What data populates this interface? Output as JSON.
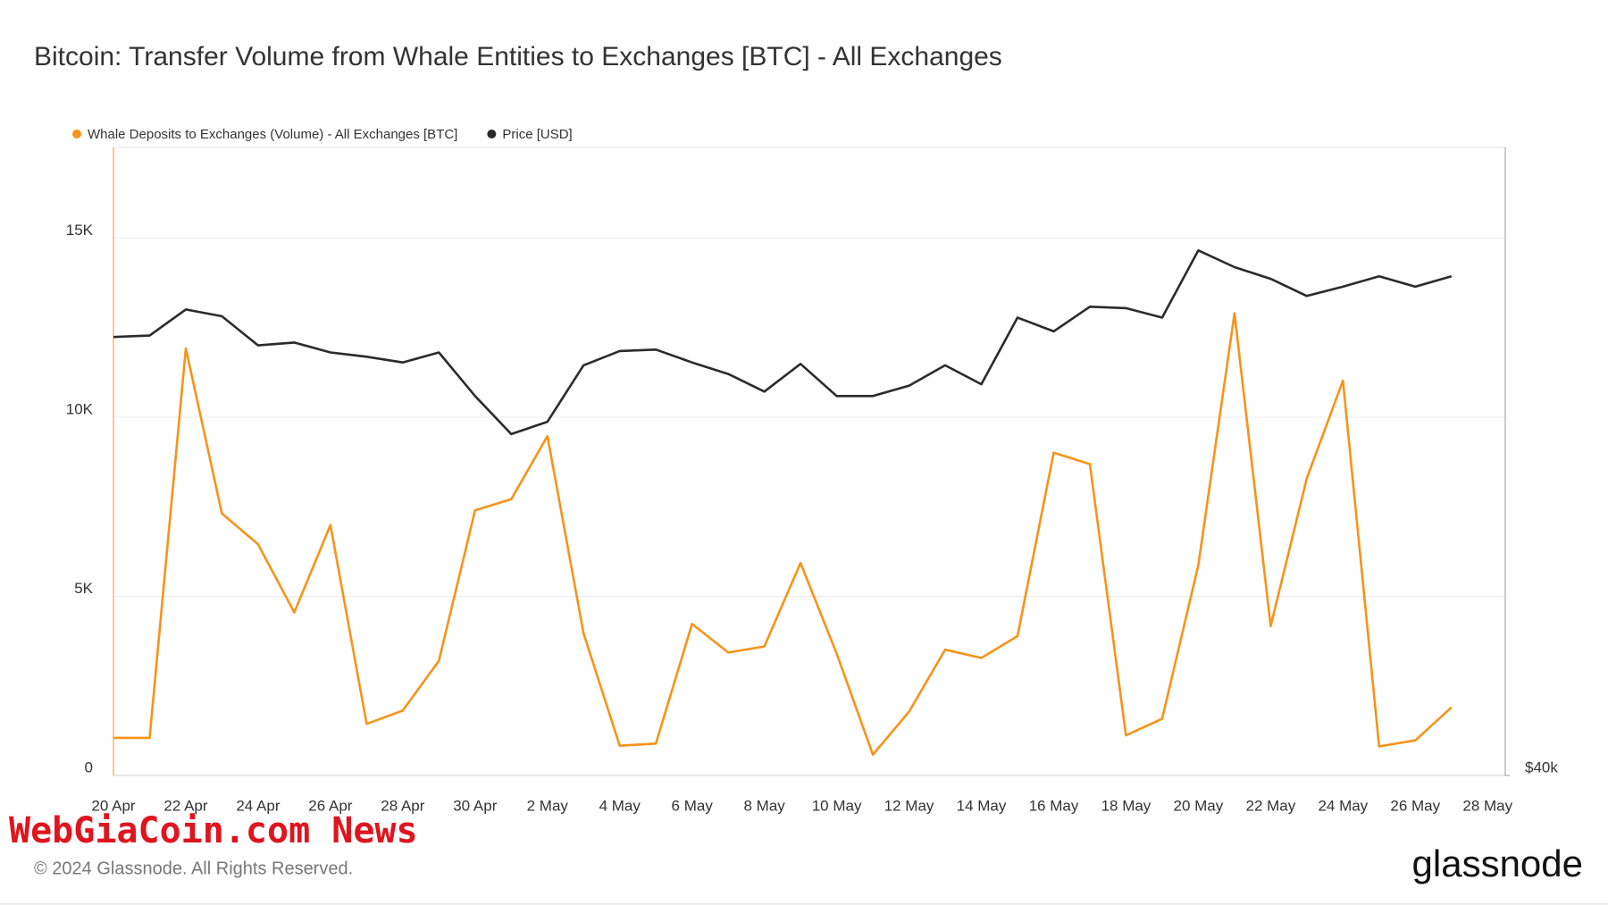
{
  "chart_data": {
    "type": "line",
    "title": "Bitcoin: Transfer Volume from Whale Entities to Exchanges [BTC] - All Exchanges",
    "categories": [
      "20 Apr",
      null,
      "22 Apr",
      null,
      "24 Apr",
      null,
      "26 Apr",
      null,
      "28 Apr",
      null,
      "30 Apr",
      null,
      "2 May",
      null,
      "4 May",
      null,
      "6 May",
      null,
      "8 May",
      null,
      "10 May",
      null,
      "12 May",
      null,
      "14 May",
      null,
      "16 May",
      null,
      "18 May",
      null,
      "20 May",
      null,
      "22 May",
      null,
      "24 May",
      null,
      "26 May",
      null,
      "28 May"
    ],
    "series": [
      {
        "name": "Whale Deposits to Exchanges (Volume) - All Exchanges [BTC]",
        "color": "#f7931a",
        "axis": "y",
        "values": [
          1050,
          1050,
          11920,
          7310,
          6450,
          4550,
          6990,
          1440,
          1810,
          3200,
          7400,
          7710,
          9470,
          3970,
          830,
          890,
          4230,
          3430,
          3600,
          5930,
          3400,
          580,
          1780,
          3510,
          3280,
          3890,
          9010,
          8690,
          1120,
          1580,
          5870,
          12900,
          4170,
          8290,
          11020,
          810,
          980,
          1900,
          null
        ]
      },
      {
        "name": "Price [USD]",
        "color": "#2b2b2b",
        "axis": "y2",
        "values": [
          64900,
          65000,
          66900,
          66400,
          64300,
          64500,
          63800,
          63500,
          63100,
          63800,
          60800,
          58300,
          59100,
          62900,
          63900,
          64000,
          63100,
          62300,
          61100,
          63000,
          60800,
          60800,
          61500,
          62900,
          61600,
          66300,
          65300,
          67100,
          67000,
          66300,
          71400,
          70100,
          69200,
          67900,
          68600,
          69400,
          68600,
          69400,
          null
        ]
      }
    ],
    "ylim": [
      0,
      17530
    ],
    "yticks": [
      0,
      {
        "value": 5000,
        "label": "5K"
      },
      {
        "value": 10000,
        "label": "10K"
      },
      {
        "value": 15000,
        "label": "15K"
      }
    ],
    "y2lim": [
      40000,
      80000
    ],
    "y2ticks": [
      {
        "value": 40000,
        "label": "$40k"
      }
    ],
    "y2log": true,
    "grid": true
  },
  "footer": {
    "watermark": "WebGiaCoin.com News",
    "copyright": "© 2024 Glassnode. All Rights Reserved.",
    "logo": "glassnode"
  }
}
